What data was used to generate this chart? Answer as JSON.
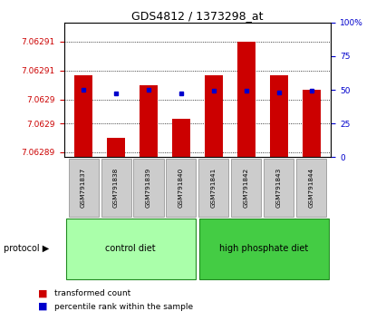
{
  "title": "GDS4812 / 1373298_at",
  "samples": [
    "GSM791837",
    "GSM791838",
    "GSM791839",
    "GSM791840",
    "GSM791841",
    "GSM791842",
    "GSM791843",
    "GSM791844"
  ],
  "bar_values": [
    7.062905,
    7.062892,
    7.062903,
    7.062896,
    7.062905,
    7.062912,
    7.062905,
    7.062902
  ],
  "dot_values": [
    50,
    47,
    50,
    47,
    49,
    49,
    48,
    49
  ],
  "ymin": 7.062888,
  "ymax": 7.062916,
  "ytick_positions": [
    7.062889,
    7.062895,
    7.0629,
    7.062906,
    7.062912
  ],
  "ytick_labels": [
    "7.06289",
    "7.0629",
    "7.0629",
    "7.06291",
    "7.06291"
  ],
  "ylim_right": [
    0,
    100
  ],
  "yticks_right": [
    0,
    25,
    50,
    75,
    100
  ],
  "ytick_labels_right": [
    "0",
    "25",
    "50",
    "75",
    "100%"
  ],
  "groups": [
    {
      "label": "control diet",
      "indices": [
        0,
        1,
        2,
        3
      ],
      "color": "#aaffaa"
    },
    {
      "label": "high phosphate diet",
      "indices": [
        4,
        5,
        6,
        7
      ],
      "color": "#44cc44"
    }
  ],
  "bar_color": "#cc0000",
  "dot_color": "#0000cc",
  "protocol_label": "protocol",
  "bar_width": 0.55,
  "bg_color": "#ffffff",
  "label_transformed": "transformed count",
  "label_percentile": "percentile rank within the sample"
}
